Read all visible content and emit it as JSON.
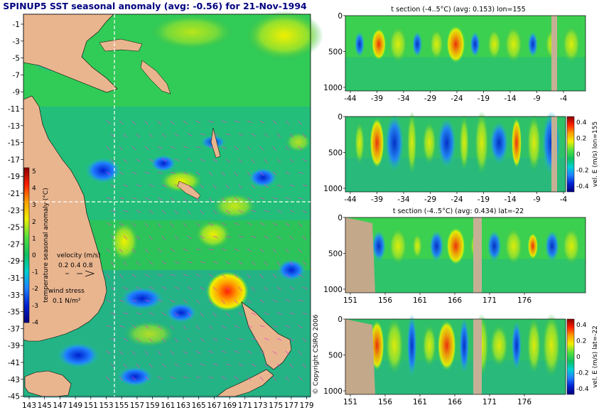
{
  "colors": {
    "land": "#e9b58f",
    "section_land": "#c3a88a",
    "section_mask": "#c5b095",
    "title": "#000080",
    "velocity_arrows": "#e040c0",
    "marker_line": "#ffffff"
  },
  "main_map": {
    "title": "SPINUP5 SST seasonal anomaly (avg: -0.56) for 21-Nov-1994",
    "y_ticks": [
      "-1",
      "-3",
      "-5",
      "-7",
      "-9",
      "-11",
      "-13",
      "-15",
      "-17",
      "-19",
      "-21",
      "-23",
      "-25",
      "-27",
      "-29",
      "-31",
      "-33",
      "-35",
      "-37",
      "-39",
      "-41",
      "-43",
      "-45"
    ],
    "x_ticks": [
      "143",
      "145",
      "147",
      "149",
      "151",
      "153",
      "155",
      "157",
      "159",
      "161",
      "163",
      "165",
      "167",
      "169",
      "171",
      "173",
      "175",
      "177",
      "179"
    ],
    "colorbar": {
      "label": "temperature seasonal anomaly (°C)",
      "ticks": [
        "5",
        "4",
        "3",
        "2",
        "1",
        "0",
        "-1",
        "-2",
        "-3",
        "-4"
      ],
      "colors": [
        "#8b0000",
        "#ff2000",
        "#ffa000",
        "#f0f000",
        "#50e040",
        "#10c060",
        "#00d0d0",
        "#2080ff",
        "#0020d0",
        "#000080"
      ]
    },
    "velocity_legend": {
      "title": "velocity (m/s)",
      "values": "0.2 0.4 0.8"
    },
    "wind_legend": {
      "title": "wind stress",
      "value": "0.1 N/m²"
    },
    "marker_lon": 155,
    "marker_lat": -22
  },
  "copyright": "© Copyright CSIRO 2006",
  "panels": [
    {
      "title": "t section (-4..5°C) (avg: 0.153) lon=155",
      "y_ticks": [
        "0",
        "500",
        "1000"
      ],
      "x_ticks": [
        "-44",
        "-39",
        "-34",
        "-29",
        "-24",
        "-19",
        "-14",
        "-9",
        "-4"
      ],
      "colorbar": null
    },
    {
      "title": "",
      "y_ticks": [
        "0",
        "500",
        "1000"
      ],
      "x_ticks": [
        "-44",
        "-39",
        "-34",
        "-29",
        "-24",
        "-19",
        "-14",
        "-9",
        "-4"
      ],
      "colorbar": {
        "label": "vel. E (m/s) lon=155",
        "ticks": [
          "0.4",
          "0.2",
          "0",
          "-0.2",
          "-0.4"
        ],
        "colors": [
          "#8b0000",
          "#ff2000",
          "#ffa000",
          "#f0f000",
          "#50e040",
          "#10c060",
          "#00d0d0",
          "#2080ff",
          "#0020d0",
          "#000080"
        ]
      }
    },
    {
      "title": "t section (-4..5°C) (avg: 0.434) lat=-22",
      "y_ticks": [
        "0",
        "500",
        "1000"
      ],
      "x_ticks": [
        "151",
        "156",
        "161",
        "166",
        "171",
        "176"
      ],
      "colorbar": null
    },
    {
      "title": "",
      "y_ticks": [
        "0",
        "500",
        "1000"
      ],
      "x_ticks": [
        "151",
        "156",
        "161",
        "166",
        "171",
        "176"
      ],
      "colorbar": {
        "label": "vel. E (m/s) lat=-22",
        "ticks": [
          "0.4",
          "0.2",
          "0",
          "-0.2",
          "-0.4"
        ],
        "colors": [
          "#8b0000",
          "#ff2000",
          "#ffa000",
          "#f0f000",
          "#50e040",
          "#10c060",
          "#00d0d0",
          "#2080ff",
          "#0020d0",
          "#000080"
        ]
      }
    }
  ],
  "chart_data": [
    {
      "type": "heatmap",
      "title": "SPINUP5 SST seasonal anomaly (avg: -0.56) for 21-Nov-1994",
      "xlabel": "",
      "ylabel": "",
      "xlim": [
        142,
        180
      ],
      "ylim": [
        -45,
        0
      ],
      "colorbar_range": [
        -4,
        5
      ],
      "colorbar_label": "temperature seasonal anomaly (°C)",
      "average": -0.56,
      "date": "21-Nov-1994"
    },
    {
      "type": "heatmap",
      "title": "t section (-4..5°C) (avg: 0.153) lon=155",
      "x_axis": "latitude",
      "xlim": [
        -46,
        0
      ],
      "y_axis": "depth",
      "ylim": [
        1050,
        0
      ],
      "colorbar_range": [
        -4,
        5
      ],
      "average": 0.153
    },
    {
      "type": "heatmap",
      "title": "",
      "x_axis": "latitude",
      "xlim": [
        -46,
        0
      ],
      "y_axis": "depth",
      "ylim": [
        1050,
        0
      ],
      "colorbar_range": [
        -0.4,
        0.4
      ],
      "colorbar_label": "vel. E (m/s) lon=155"
    },
    {
      "type": "heatmap",
      "title": "t section (-4..5°C) (avg: 0.434) lat=-22",
      "x_axis": "longitude",
      "xlim": [
        150,
        180
      ],
      "y_axis": "depth",
      "ylim": [
        1050,
        0
      ],
      "colorbar_range": [
        -4,
        5
      ],
      "average": 0.434
    },
    {
      "type": "heatmap",
      "title": "",
      "x_axis": "longitude",
      "xlim": [
        150,
        180
      ],
      "y_axis": "depth",
      "ylim": [
        1050,
        0
      ],
      "colorbar_range": [
        -0.4,
        0.4
      ],
      "colorbar_label": "vel. E (m/s) lat=-22"
    }
  ]
}
